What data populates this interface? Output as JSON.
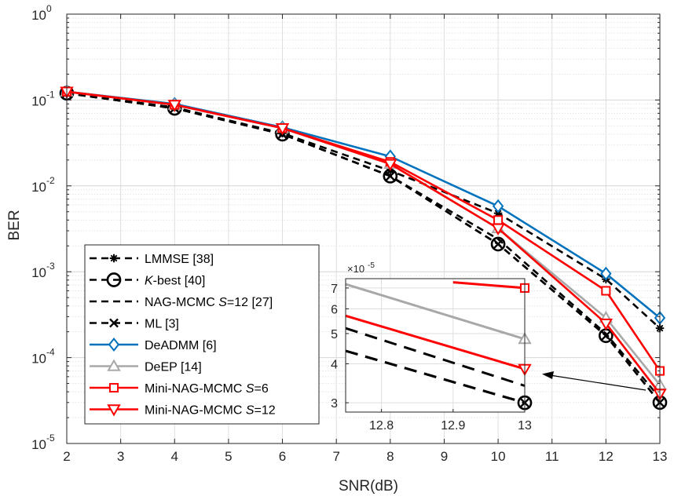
{
  "chart_data": {
    "type": "line",
    "xlabel": "SNR(dB)",
    "ylabel": "BER",
    "xlim": [
      2,
      13
    ],
    "ylim": [
      1e-05,
      1
    ],
    "yscale": "log",
    "grid": true,
    "x_ticks": [
      2,
      3,
      4,
      5,
      6,
      7,
      8,
      9,
      10,
      11,
      12,
      13
    ],
    "y_ticks": [
      {
        "base": "10",
        "exp": "-5",
        "value": 1e-05
      },
      {
        "base": "10",
        "exp": "-4",
        "value": 0.0001
      },
      {
        "base": "10",
        "exp": "-3",
        "value": 0.001
      },
      {
        "base": "10",
        "exp": "-2",
        "value": 0.01
      },
      {
        "base": "10",
        "exp": "-1",
        "value": 0.1
      },
      {
        "base": "10",
        "exp": "0",
        "value": 1
      }
    ],
    "legend_position": "bottom-left",
    "series": [
      {
        "name": "LMMSE [38]",
        "color": "#000000",
        "dash": "dashed",
        "marker": "asterisk",
        "x": [
          2,
          4,
          6,
          8,
          10,
          12,
          13
        ],
        "y": [
          0.12,
          0.082,
          0.041,
          0.015,
          0.0048,
          0.00082,
          0.00022
        ]
      },
      {
        "name_prefix": "",
        "name_italic": "K",
        "name_suffix": "-best [40]",
        "color": "#000000",
        "dash": "dashed",
        "marker": "circle",
        "x": [
          2,
          4,
          6,
          8,
          10,
          12,
          13
        ],
        "y": [
          0.12,
          0.08,
          0.04,
          0.013,
          0.0021,
          0.00018,
          3e-05
        ]
      },
      {
        "name_prefix": "NAG-MCMC  ",
        "name_italic": "S",
        "name_suffix": "=12 [27]",
        "color": "#000000",
        "dash": "dashed",
        "marker": "none",
        "x": [
          2,
          4,
          6,
          8,
          10,
          12,
          13
        ],
        "y": [
          0.12,
          0.08,
          0.04,
          0.013,
          0.0024,
          0.00019,
          3.4e-05
        ]
      },
      {
        "name": "ML [3]",
        "color": "#000000",
        "dash": "dashed",
        "marker": "x",
        "x": [
          2,
          4,
          6,
          8,
          10,
          12,
          13
        ],
        "y": [
          0.12,
          0.08,
          0.04,
          0.013,
          0.0021,
          0.00018,
          3e-05
        ]
      },
      {
        "name": "DeADMM [6]",
        "color": "#0072BD",
        "dash": "solid",
        "marker": "diamond",
        "x": [
          2,
          4,
          6,
          8,
          10,
          12,
          13
        ],
        "y": [
          0.125,
          0.09,
          0.048,
          0.022,
          0.0058,
          0.00095,
          0.00029
        ]
      },
      {
        "name": "DeEP [14]",
        "color": "#A8A8A8",
        "dash": "solid",
        "marker": "triangle-up",
        "x": [
          2,
          4,
          6,
          8,
          10,
          12,
          13
        ],
        "y": [
          0.125,
          0.088,
          0.047,
          0.018,
          0.0032,
          0.00029,
          4.8e-05
        ]
      },
      {
        "name_prefix": "Mini-NAG-MCMC  ",
        "name_italic": "S",
        "name_suffix": "=6",
        "color": "#FF0000",
        "dash": "solid",
        "marker": "square",
        "x": [
          2,
          4,
          6,
          8,
          10,
          12,
          13
        ],
        "y": [
          0.125,
          0.088,
          0.047,
          0.019,
          0.004,
          0.0006,
          7e-05
        ]
      },
      {
        "name_prefix": "Mini-NAG-MCMC  ",
        "name_italic": "S",
        "name_suffix": "=12",
        "color": "#FF0000",
        "dash": "solid",
        "marker": "triangle-down",
        "x": [
          2,
          4,
          6,
          8,
          10,
          12,
          13
        ],
        "y": [
          0.125,
          0.088,
          0.047,
          0.018,
          0.0032,
          0.00025,
          3.8e-05
        ]
      }
    ],
    "inset": {
      "xlim": [
        12.75,
        13
      ],
      "ylim": [
        2.8e-05,
        7.5e-05
      ],
      "yscale": "log",
      "exponent_label": "×10",
      "exponent_value": "-5",
      "x_ticks": [
        {
          "value": 12.8,
          "label": "12.8"
        },
        {
          "value": 12.9,
          "label": "12.9"
        },
        {
          "value": 13,
          "label": "13"
        }
      ],
      "y_ticks": [
        {
          "value": 3e-05,
          "label": "3"
        },
        {
          "value": 4e-05,
          "label": "4"
        },
        {
          "value": 5e-05,
          "label": "5"
        },
        {
          "value": 6e-05,
          "label": "6"
        },
        {
          "value": 7e-05,
          "label": "7"
        }
      ],
      "series": [
        {
          "ref": 6,
          "x": [
            12.9,
            13
          ],
          "y": [
            7.3e-05,
            7e-05
          ],
          "end_marker": true
        },
        {
          "ref": 5,
          "x": [
            12.75,
            13
          ],
          "y": [
            7.2e-05,
            4.8e-05
          ],
          "end_marker": true
        },
        {
          "ref": 2,
          "x": [
            12.75,
            13
          ],
          "y": [
            5.2e-05,
            3.4e-05
          ],
          "end_marker": false
        },
        {
          "ref": 7,
          "x": [
            12.75,
            13
          ],
          "y": [
            5.7e-05,
            3.85e-05
          ],
          "end_marker": true
        },
        {
          "ref": 1,
          "x": [
            12.75,
            13
          ],
          "y": [
            4.4e-05,
            3e-05
          ],
          "end_marker": true
        },
        {
          "ref": 3,
          "x": [
            12.75,
            13
          ],
          "y": [
            4.4e-05,
            3e-05
          ],
          "end_marker": true
        }
      ]
    }
  }
}
